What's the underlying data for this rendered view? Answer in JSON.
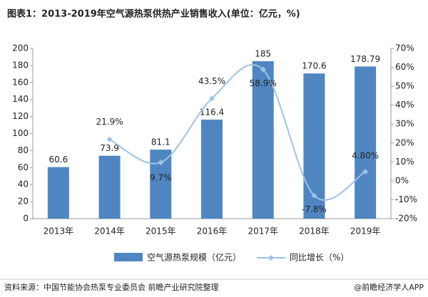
{
  "chart_data": {
    "type": "bar_line",
    "title": "图表1：2013-2019年空气源热泵供热产业销售收入(单位：亿元，%)",
    "categories": [
      "2013年",
      "2014年",
      "2015年",
      "2016年",
      "2017年",
      "2018年",
      "2019年"
    ],
    "series": [
      {
        "name": "空气源热泵规模（亿元）",
        "color": "#4f86c2",
        "values": [
          60.6,
          73.9,
          81.1,
          116.4,
          185,
          170.6,
          178.79
        ]
      },
      {
        "name": "同比增长（%）",
        "color": "#9dc3e6",
        "axis": "y2",
        "values": [
          null,
          21.9,
          9.7,
          43.5,
          58.9,
          -7.8,
          4.8
        ],
        "value_labels": [
          null,
          "21.9%",
          "9.7%",
          "43.5%",
          "58.9%",
          "-7.8%",
          "4.80%"
        ]
      }
    ],
    "ylim": [
      0,
      200
    ],
    "yticks": [
      0,
      20,
      40,
      60,
      80,
      100,
      120,
      140,
      160,
      180,
      200
    ],
    "y2lim": [
      -20,
      70
    ],
    "y2ticks": [
      {
        "value": -20,
        "label": "-20%"
      },
      {
        "value": -10,
        "label": "-10%"
      },
      {
        "value": 0,
        "label": "0%"
      },
      {
        "value": 10,
        "label": "10%"
      },
      {
        "value": 20,
        "label": "20%"
      },
      {
        "value": 30,
        "label": "30%"
      },
      {
        "value": 40,
        "label": "40%"
      },
      {
        "value": 50,
        "label": "50%"
      },
      {
        "value": 60,
        "label": "60%"
      },
      {
        "value": 70,
        "label": "70%"
      }
    ],
    "source": "资料来源：中国节能协会热泵专业委员会 前瞻产业研究院整理",
    "brand": "@前瞻经济学人APP"
  }
}
